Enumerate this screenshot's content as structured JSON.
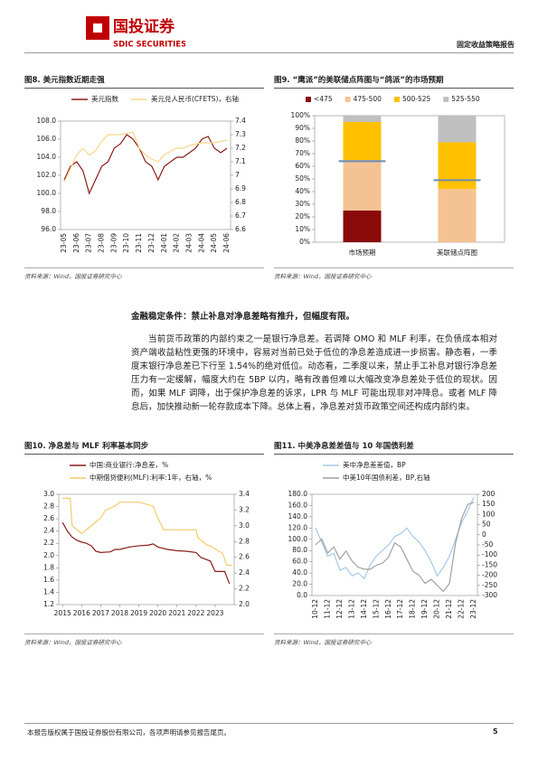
{
  "header": {
    "logo_cn": "国投证券",
    "logo_en": "SDIC SECURITIES",
    "report_type": "固定收益策略报告"
  },
  "section": {
    "heading": "金融稳定条件：禁止补息对净息差略有推升，但幅度有限。",
    "paragraph": "当前货币政策的内部约束之一是银行净息差。若调降 OMO 和 MLF 利率，在负债成本相对资产端收益粘性更强的环境中，容易对当前已处于低位的净息差造成进一步损害。静态看，一季度末银行净息差已下行至 1.54%的绝对低位。动态看，二季度以来，禁止手工补息对银行净息差压力有一定缓解，幅度大约在 5BP 以内，略有改善但难以大幅改变净息差处于低位的现状。因而，如果 MLF 调降，出于保护净息差的诉求，LPR 与 MLF 可能出现非对冲降息。或者 MLF 降息后，加快推动新一轮存款成本下降。总体上看，净息差对货币政策空间还构成内部约束。"
  },
  "footer": {
    "disclaimer": "本报告版权属于国投证券股份有限公司，各项声明请参见报告尾页。",
    "page": "5"
  },
  "chart_data": [
    {
      "type": "line",
      "title": "图8. 美元指数近期走强",
      "source": "资料来源：Wind，国投证券研究中心",
      "legend": "top",
      "categories": [
        "23-05",
        null,
        "23-06",
        null,
        "23-07",
        null,
        "23-08",
        null,
        "23-09",
        null,
        "23-10",
        null,
        "23-11",
        null,
        "23-12",
        null,
        "24-01",
        null,
        "24-02",
        null,
        "24-03",
        null,
        "24-04",
        null,
        "24-05",
        null,
        "24-06"
      ],
      "series": [
        {
          "name": "美元指数",
          "color": "#8b1c1c",
          "values": [
            101.5,
            103,
            103.5,
            102.5,
            100,
            101.5,
            103,
            103.5,
            105,
            105.5,
            106.5,
            106,
            105,
            103.5,
            103,
            101.5,
            103,
            103.5,
            104,
            104,
            104.5,
            105,
            106,
            106.3,
            105,
            104.5,
            105
          ]
        },
        {
          "name": "美元兑人民币(CFETS)，右轴",
          "color": "#f7d78a",
          "axis": "y2",
          "values": [
            6.95,
            7.05,
            7.15,
            7.2,
            7.15,
            7.18,
            7.25,
            7.3,
            7.3,
            7.3,
            7.31,
            7.32,
            7.2,
            7.15,
            7.12,
            7.1,
            7.15,
            7.18,
            7.2,
            7.2,
            7.22,
            7.23,
            7.24,
            7.24,
            7.24,
            7.25,
            7.26
          ]
        }
      ],
      "ylim": [
        96,
        108
      ],
      "yticks": [
        {
          "value": 96,
          "label": "96.0"
        },
        {
          "value": 98,
          "label": "98.0"
        },
        {
          "value": 100,
          "label": "100.0"
        },
        {
          "value": 102,
          "label": "102.0"
        },
        {
          "value": 104,
          "label": "104.0"
        },
        {
          "value": 106,
          "label": "106.0"
        },
        {
          "value": 108,
          "label": "108.0"
        }
      ],
      "y2lim": [
        6.6,
        7.4
      ],
      "y2ticks": [
        6.6,
        6.7,
        6.8,
        6.9,
        7,
        7.1,
        7.2,
        7.3,
        7.4
      ]
    },
    {
      "type": "bar",
      "stacked": true,
      "title": "图9. “鹰派”的美联储点阵图与“鸽派”的市场预期",
      "source": "资料来源：Wind，国投证券研究中心",
      "legend": "top",
      "categories": [
        "市场预期",
        "美联储点阵图"
      ],
      "series": [
        {
          "name": "<475",
          "color": "#8b0a0a",
          "values": [
            25,
            0
          ]
        },
        {
          "name": "475-500",
          "color": "#f5c393",
          "values": [
            40,
            42
          ]
        },
        {
          "name": "500-525",
          "color": "#ffc000",
          "values": [
            30,
            37
          ]
        },
        {
          "name": "525-550",
          "color": "#bfbfbf",
          "values": [
            5,
            21
          ]
        }
      ],
      "reference_values": [
        64,
        49
      ],
      "reference_color": "#6a8cb0",
      "ylim": [
        0,
        100
      ],
      "yticks": [
        {
          "value": 0,
          "label": "0%"
        },
        {
          "value": 10,
          "label": "10%"
        },
        {
          "value": 20,
          "label": "20%"
        },
        {
          "value": 30,
          "label": "30%"
        },
        {
          "value": 40,
          "label": "40%"
        },
        {
          "value": 50,
          "label": "50%"
        },
        {
          "value": 60,
          "label": "60%"
        },
        {
          "value": 70,
          "label": "70%"
        },
        {
          "value": 80,
          "label": "80%"
        },
        {
          "value": 90,
          "label": "90%"
        },
        {
          "value": 100,
          "label": "100%"
        }
      ]
    },
    {
      "type": "line",
      "title": "图10. 净息差与 MLF 利率基本同步",
      "source": "资料来源：Wind，国投证券研究中心",
      "legend": "upper-left",
      "xlim": [
        2014.8,
        2024.0
      ],
      "xticks": [
        2015,
        2016,
        2017,
        2018,
        2019,
        2020,
        2021,
        2022,
        2023
      ],
      "series": [
        {
          "name": "中国:商业银行:净息差，%",
          "color": "#8b1c1c",
          "x": [
            2015.0,
            2015.25,
            2015.5,
            2015.75,
            2016.0,
            2016.25,
            2016.5,
            2016.75,
            2017.0,
            2017.5,
            2017.75,
            2018.0,
            2018.5,
            2019.0,
            2019.5,
            2019.75,
            2020.0,
            2020.5,
            2021.0,
            2021.5,
            2022.0,
            2022.25,
            2022.5,
            2022.75,
            2023.0,
            2023.25,
            2023.5,
            2023.75
          ],
          "values": [
            2.54,
            2.4,
            2.3,
            2.25,
            2.22,
            2.2,
            2.16,
            2.07,
            2.05,
            2.06,
            2.1,
            2.1,
            2.14,
            2.16,
            2.17,
            2.19,
            2.14,
            2.1,
            2.08,
            2.07,
            2.05,
            1.97,
            1.94,
            1.91,
            1.74,
            1.74,
            1.74,
            1.54
          ]
        },
        {
          "name": "中期借贷便利(MLF):利率:1年，右轴，%",
          "color": "#f7c96a",
          "axis": "y2",
          "x": [
            2015.0,
            2015.4,
            2015.5,
            2016.0,
            2016.5,
            2017.0,
            2017.25,
            2017.75,
            2018.0,
            2018.5,
            2019.0,
            2019.75,
            2019.9,
            2020.3,
            2022.0,
            2022.1,
            2022.6,
            2022.7,
            2023.4,
            2023.6,
            2023.9
          ],
          "values": [
            3.35,
            3.35,
            3.0,
            2.9,
            3.0,
            3.1,
            3.2,
            3.25,
            3.3,
            3.3,
            3.3,
            3.25,
            3.15,
            2.95,
            2.95,
            2.85,
            2.75,
            2.75,
            2.65,
            2.5,
            2.5
          ]
        }
      ],
      "ylim": [
        1.2,
        3.0
      ],
      "yticks": [
        1.2,
        1.4,
        1.6,
        1.8,
        {
          "value": 2,
          "label": "2.0"
        },
        2.2,
        2.4,
        2.6,
        2.8,
        {
          "value": 3,
          "label": "3.0"
        }
      ],
      "y2lim": [
        2.0,
        3.4
      ],
      "y2ticks": [
        {
          "value": 2,
          "label": "2.0"
        },
        2.2,
        2.4,
        2.6,
        2.8,
        {
          "value": 3,
          "label": "3.0"
        },
        3.2,
        3.4
      ]
    },
    {
      "type": "line",
      "title": "图11. 中美净息差差值与 10 年国债利差",
      "source": "资料来源：Wind，国投证券研究中心",
      "legend": "upper-left",
      "categories": [
        "10-12",
        null,
        "11-12",
        null,
        "12-12",
        null,
        "13-12",
        null,
        "14-12",
        null,
        "15-12",
        null,
        "16-12",
        null,
        "17-12",
        null,
        "18-12",
        null,
        "19-12",
        null,
        "20-12",
        null,
        "21-12",
        null,
        "22-12",
        null,
        "23-12"
      ],
      "series": [
        {
          "name": "美中净息差差值，BP",
          "color": "#a9c8e8",
          "values": [
            120,
            95,
            70,
            75,
            45,
            50,
            35,
            40,
            30,
            55,
            70,
            80,
            90,
            105,
            110,
            120,
            105,
            95,
            80,
            60,
            35,
            50,
            70,
            100,
            130,
            150,
            175
          ]
        },
        {
          "name": "中美10年国债利差，BP,右轴",
          "color": "#a0a0a0",
          "axis": "y2",
          "values": [
            -50,
            -20,
            -90,
            -60,
            -120,
            -80,
            -130,
            -160,
            -170,
            -170,
            -150,
            -140,
            -110,
            -40,
            -60,
            -120,
            -180,
            -200,
            -240,
            -220,
            -250,
            -280,
            -240,
            -40,
            80,
            150,
            160
          ]
        }
      ],
      "ylim": [
        0,
        180
      ],
      "yticks": [
        {
          "value": 0,
          "label": "0.0"
        },
        {
          "value": 20,
          "label": "20.0"
        },
        {
          "value": 40,
          "label": "40.0"
        },
        {
          "value": 60,
          "label": "60.0"
        },
        {
          "value": 80,
          "label": "80.0"
        },
        {
          "value": 100,
          "label": "100.0"
        },
        {
          "value": 120,
          "label": "120.0"
        },
        {
          "value": 140,
          "label": "140.0"
        },
        {
          "value": 160,
          "label": "160.0"
        },
        {
          "value": 180,
          "label": "180.0"
        }
      ],
      "y2lim": [
        -300,
        200
      ],
      "y2ticks": [
        -300,
        -250,
        -200,
        -150,
        -100,
        -50,
        0,
        50,
        100,
        150,
        200
      ]
    }
  ]
}
